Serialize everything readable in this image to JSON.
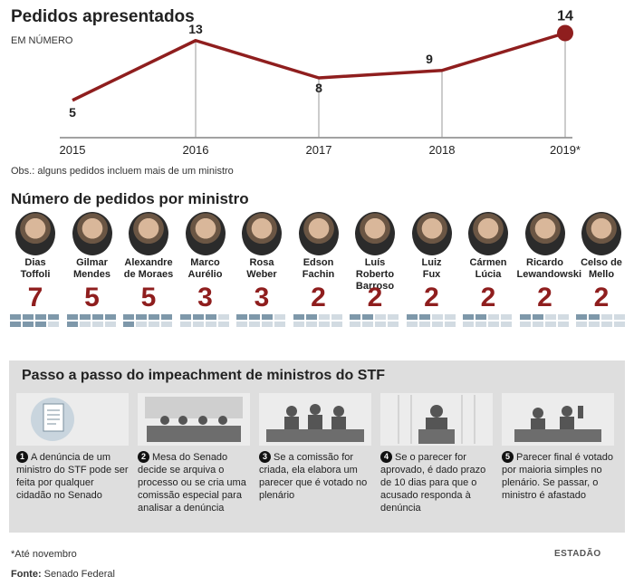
{
  "header": {
    "title": "Pedidos apresentados",
    "unit": "EM NÚMERO"
  },
  "chart_data": {
    "type": "line",
    "title": "Pedidos apresentados",
    "ylabel": "EM NÚMERO",
    "x": [
      "2015",
      "2016",
      "2017",
      "2018",
      "2019*"
    ],
    "values": [
      5,
      13,
      8,
      9,
      14
    ],
    "value_labels": [
      "5",
      "13",
      "8",
      "9",
      "14"
    ],
    "ylim": [
      0,
      16
    ],
    "grid": false,
    "line_color": "#8f1e1e"
  },
  "obs": "Obs.: alguns pedidos incluem mais de um ministro",
  "ministers_title": "Número de pedidos por ministro",
  "ministers": [
    {
      "name1": "Dias",
      "name2": "Toffoli",
      "count": "7",
      "n": 7
    },
    {
      "name1": "Gilmar",
      "name2": "Mendes",
      "count": "5",
      "n": 5
    },
    {
      "name1": "Alexandre",
      "name2": "de Moraes",
      "count": "5",
      "n": 5
    },
    {
      "name1": "Marco",
      "name2": "Aurélio",
      "count": "3",
      "n": 3
    },
    {
      "name1": "Rosa",
      "name2": "Weber",
      "count": "3",
      "n": 3
    },
    {
      "name1": "Edson",
      "name2": "Fachin",
      "count": "2",
      "n": 2
    },
    {
      "name1": "Luís Roberto",
      "name2": "Barroso",
      "count": "2",
      "n": 2
    },
    {
      "name1": "Luiz",
      "name2": "Fux",
      "count": "2",
      "n": 2
    },
    {
      "name1": "Cármen",
      "name2": "Lúcia",
      "count": "2",
      "n": 2
    },
    {
      "name1": "Ricardo",
      "name2": "Lewandowski",
      "count": "2",
      "n": 2
    },
    {
      "name1": "Celso de",
      "name2": "Mello",
      "count": "2",
      "n": 2
    }
  ],
  "steps_title": "Passo a passo do impeachment de ministros do STF",
  "steps": [
    {
      "num": "1",
      "text": "A denúncia de um ministro do STF pode ser feita por qualquer cidadão no Senado",
      "icon": "document-icon"
    },
    {
      "num": "2",
      "text": "Mesa do Senado decide se arquiva o processo ou se cria uma comissão especial para analisar a denúncia",
      "icon": "senate-table-icon"
    },
    {
      "num": "3",
      "text": "Se a comissão for criada, ela elabora um parecer que é votado no plenário",
      "icon": "commission-icon"
    },
    {
      "num": "4",
      "text": "Se o parecer for aprovado, é dado prazo de 10 dias para que o acusado responda à denúncia",
      "icon": "speaker-icon"
    },
    {
      "num": "5",
      "text": "Parecer final é votado por maioria simples no plenário. Se passar, o ministro é afastado",
      "icon": "vote-icon"
    }
  ],
  "footnote": "*Até novembro",
  "source_label": "Fonte:",
  "source": "Senado Federal",
  "brand": "ESTADÃO"
}
